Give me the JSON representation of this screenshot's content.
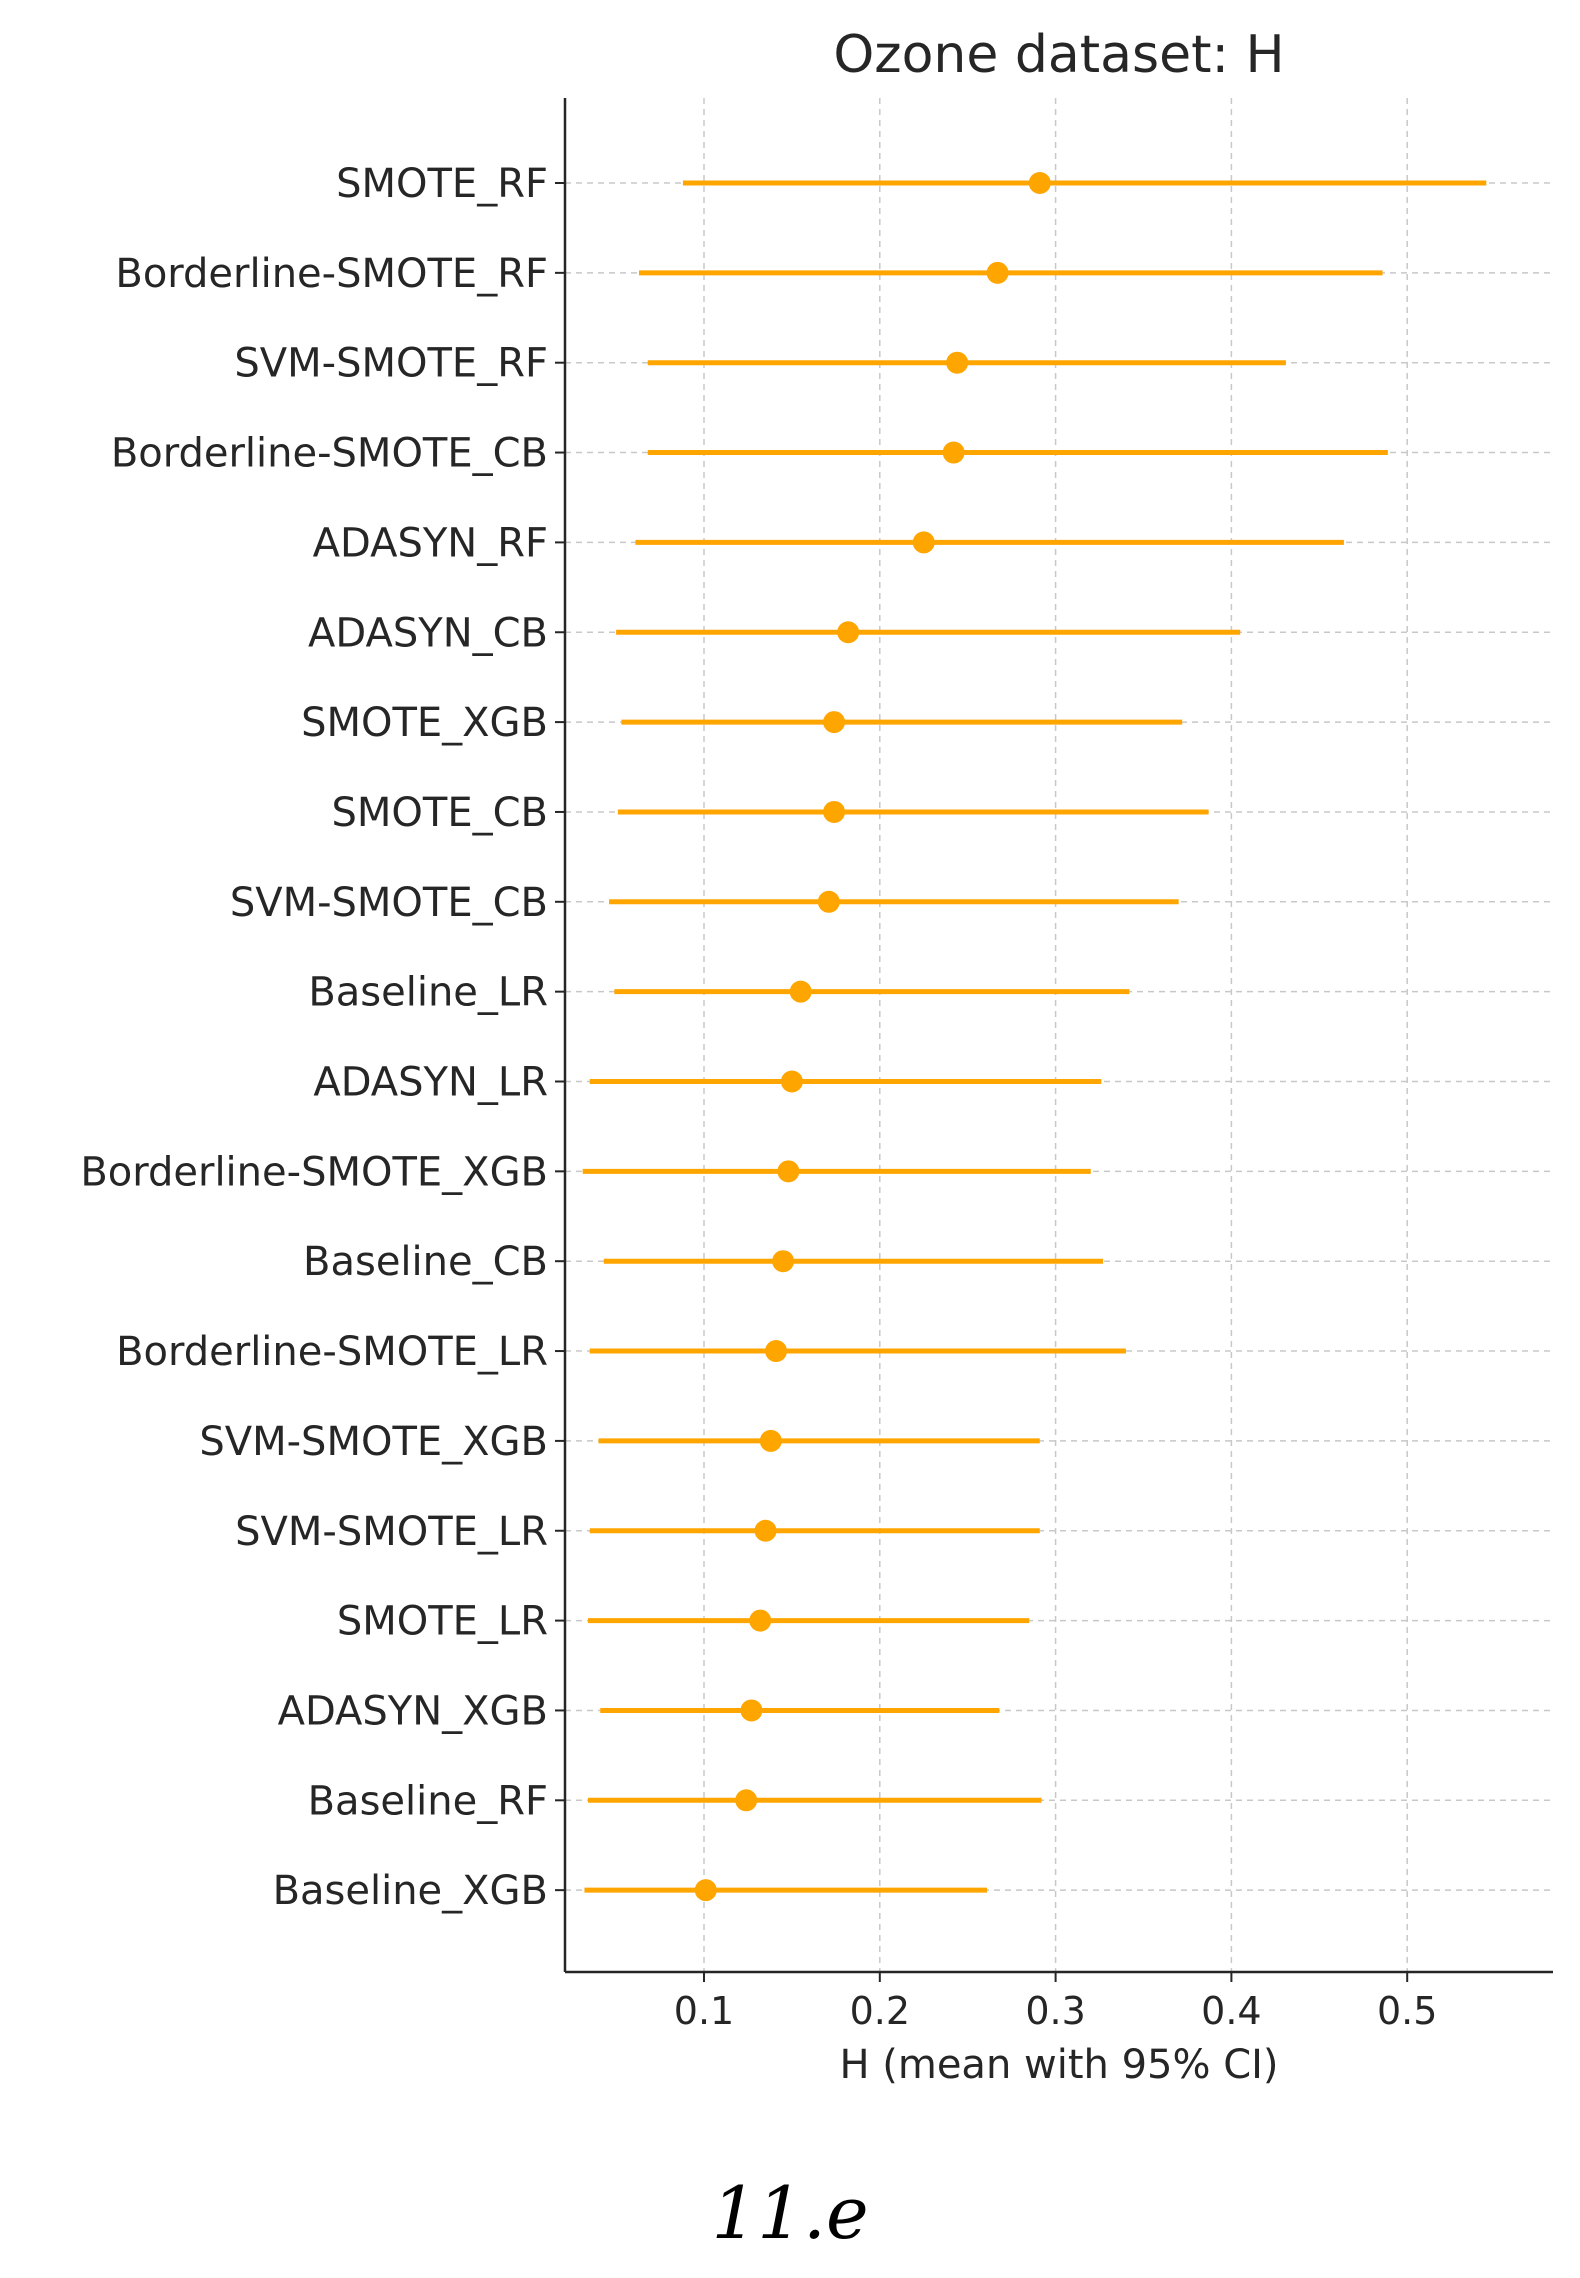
{
  "caption": "11.e",
  "chart_data": {
    "type": "errorbar",
    "title": "Ozone dataset: H",
    "xlabel": "H (mean with 95% CI)",
    "ylabel": "",
    "xlim": [
      0.0,
      0.57
    ],
    "xticks": [
      0.1,
      0.2,
      0.3,
      0.4,
      0.5
    ],
    "xtick_labels": [
      "0.1",
      "0.2",
      "0.3",
      "0.4",
      "0.5"
    ],
    "grid": true,
    "color": "#FFA500",
    "series": [
      {
        "label": "SMOTE_RF",
        "mean": 0.291,
        "lower": 0.088,
        "upper": 0.545
      },
      {
        "label": "Borderline-SMOTE_RF",
        "mean": 0.267,
        "lower": 0.063,
        "upper": 0.486
      },
      {
        "label": "SVM-SMOTE_RF",
        "mean": 0.244,
        "lower": 0.068,
        "upper": 0.431
      },
      {
        "label": "Borderline-SMOTE_CB",
        "mean": 0.242,
        "lower": 0.068,
        "upper": 0.489
      },
      {
        "label": "ADASYN_RF",
        "mean": 0.225,
        "lower": 0.061,
        "upper": 0.464
      },
      {
        "label": "ADASYN_CB",
        "mean": 0.182,
        "lower": 0.05,
        "upper": 0.405
      },
      {
        "label": "SMOTE_XGB",
        "mean": 0.174,
        "lower": 0.053,
        "upper": 0.372
      },
      {
        "label": "SMOTE_CB",
        "mean": 0.174,
        "lower": 0.051,
        "upper": 0.387
      },
      {
        "label": "SVM-SMOTE_CB",
        "mean": 0.171,
        "lower": 0.046,
        "upper": 0.37
      },
      {
        "label": "Baseline_LR",
        "mean": 0.155,
        "lower": 0.049,
        "upper": 0.342
      },
      {
        "label": "ADASYN_LR",
        "mean": 0.15,
        "lower": 0.035,
        "upper": 0.326
      },
      {
        "label": "Borderline-SMOTE_XGB",
        "mean": 0.148,
        "lower": 0.031,
        "upper": 0.32
      },
      {
        "label": "Baseline_CB",
        "mean": 0.145,
        "lower": 0.043,
        "upper": 0.327
      },
      {
        "label": "Borderline-SMOTE_LR",
        "mean": 0.141,
        "lower": 0.035,
        "upper": 0.34
      },
      {
        "label": "SVM-SMOTE_XGB",
        "mean": 0.138,
        "lower": 0.04,
        "upper": 0.291
      },
      {
        "label": "SVM-SMOTE_LR",
        "mean": 0.135,
        "lower": 0.035,
        "upper": 0.291
      },
      {
        "label": "SMOTE_LR",
        "mean": 0.132,
        "lower": 0.034,
        "upper": 0.285
      },
      {
        "label": "ADASYN_XGB",
        "mean": 0.127,
        "lower": 0.041,
        "upper": 0.268
      },
      {
        "label": "Baseline_RF",
        "mean": 0.124,
        "lower": 0.034,
        "upper": 0.292
      },
      {
        "label": "Baseline_XGB",
        "mean": 0.101,
        "lower": 0.032,
        "upper": 0.261
      }
    ]
  }
}
